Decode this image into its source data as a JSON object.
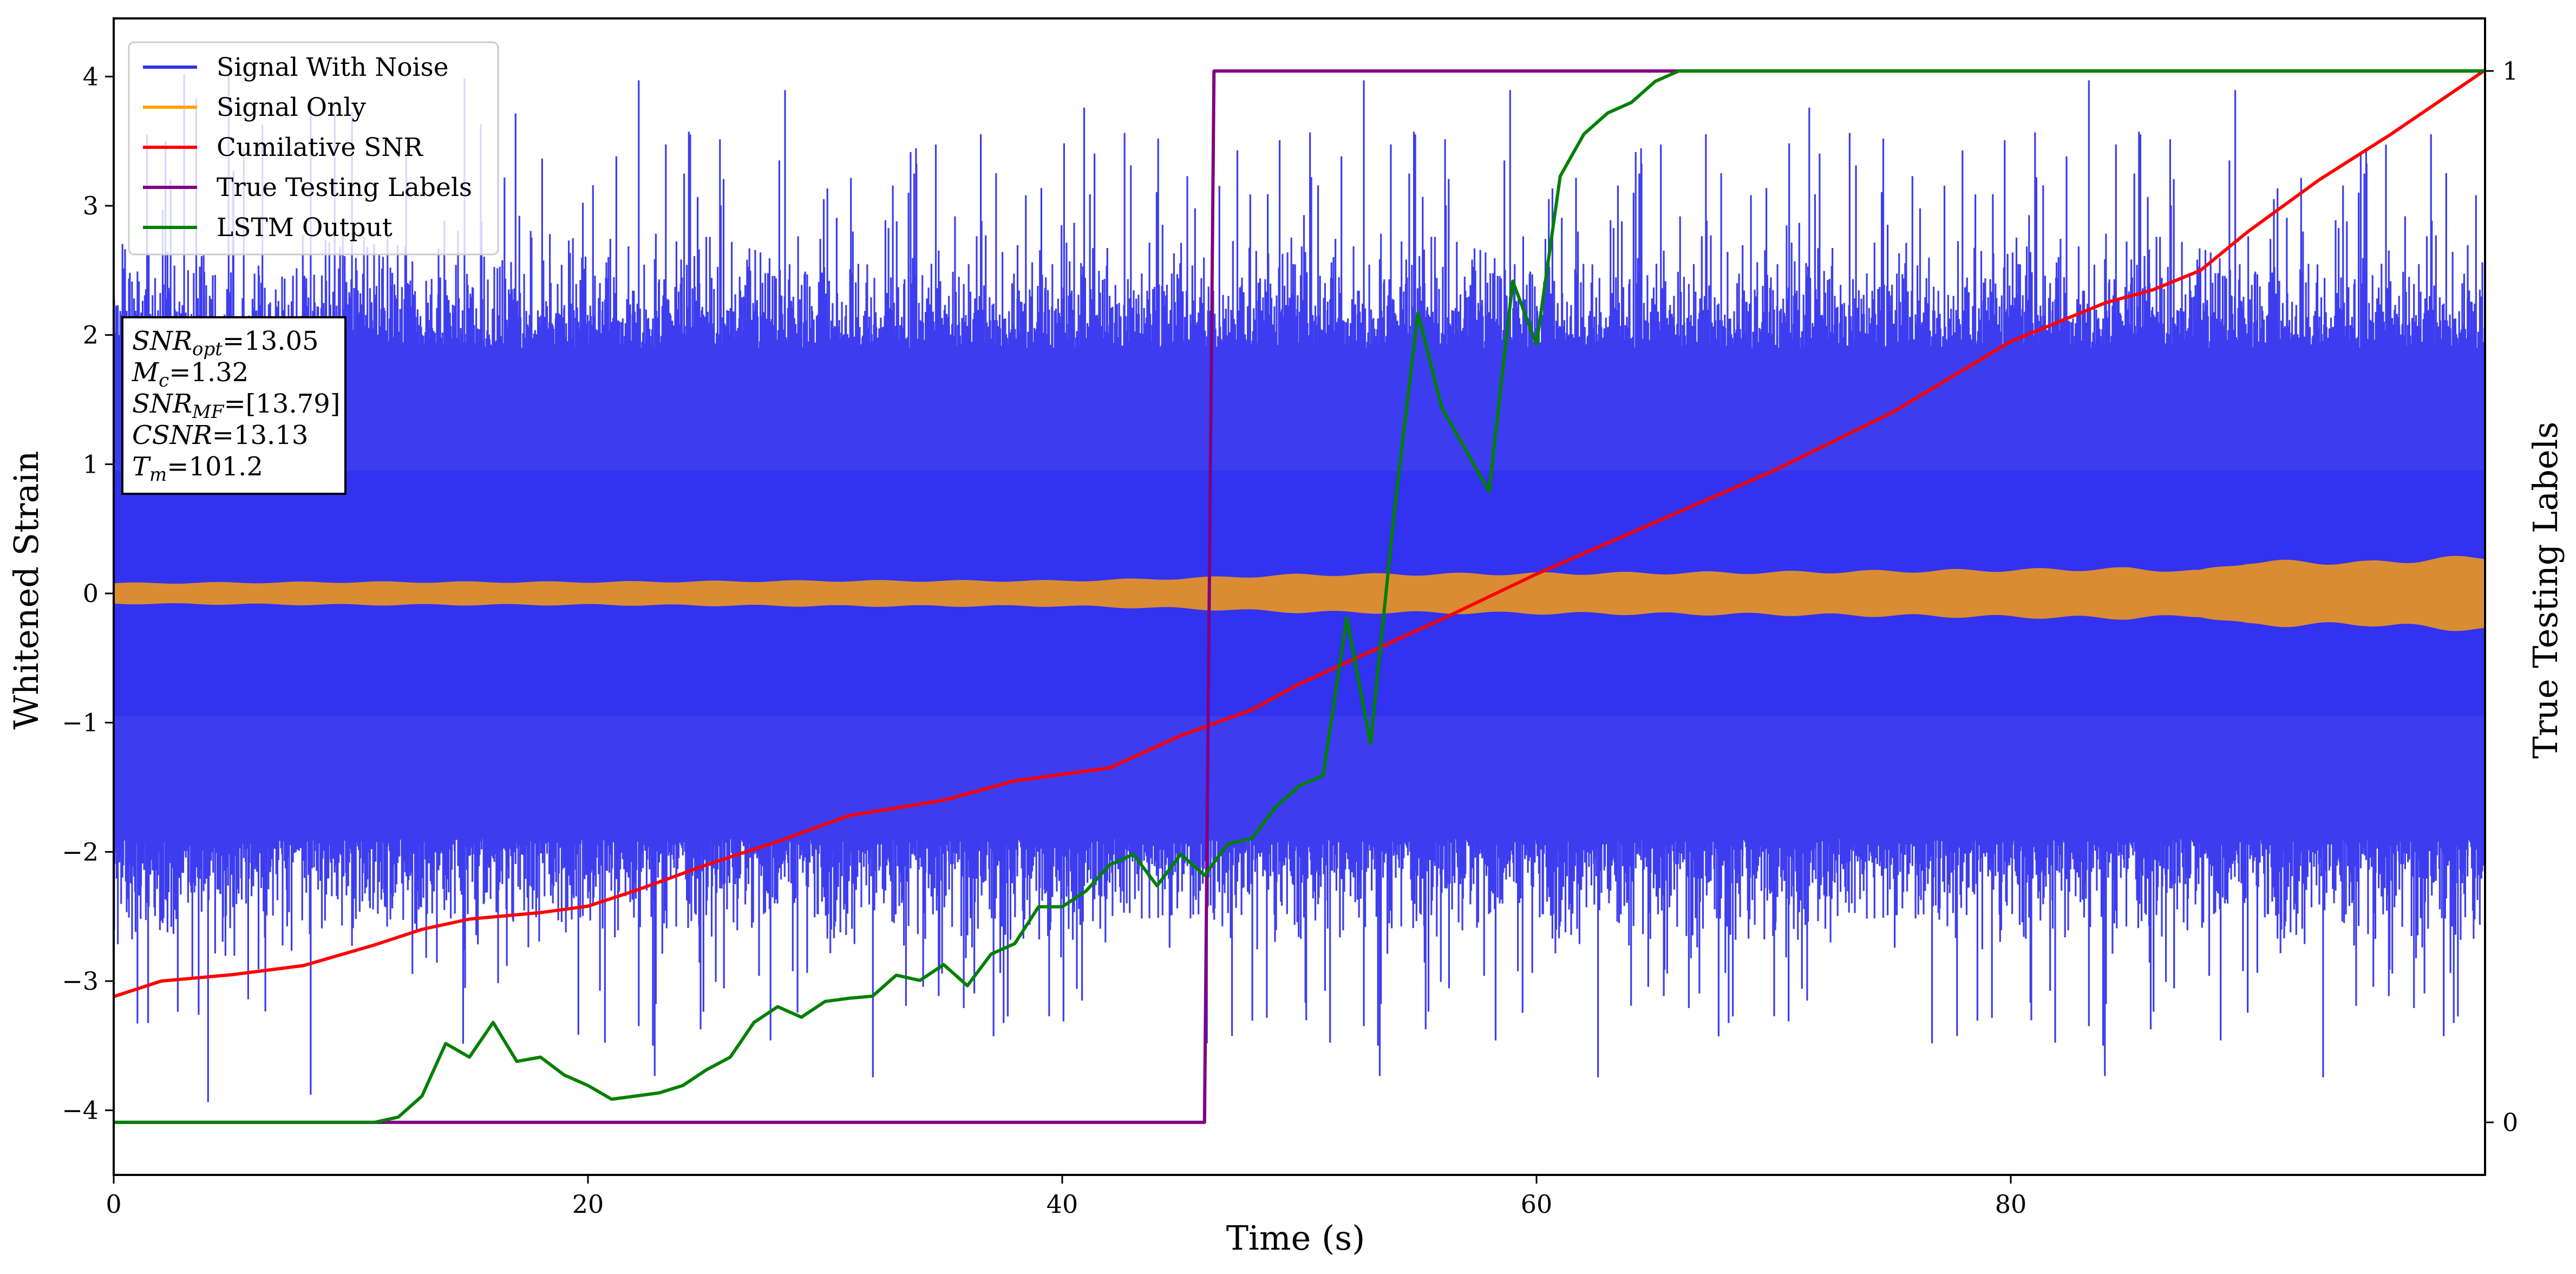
{
  "chart_data": {
    "type": "line",
    "xlabel": "Time (s)",
    "ylabel": "Whitened Strain",
    "ylabel_right": "True Testing Labels",
    "xlim": [
      0,
      100
    ],
    "ylim": [
      -4.5,
      4.45
    ],
    "ylim_right": [
      -0.05,
      1.05
    ],
    "x_ticks": [
      0,
      20,
      40,
      60,
      80
    ],
    "y_ticks": [
      -4,
      -3,
      -2,
      -1,
      0,
      1,
      2,
      3,
      4
    ],
    "y_ticks_right": [
      0,
      1
    ],
    "grid": false,
    "legend_position": "top-left",
    "legend": [
      {
        "label": "Signal With Noise",
        "color": "#3333ee"
      },
      {
        "label": "Signal Only",
        "color": "#ffa500"
      },
      {
        "label": "Cumilative SNR",
        "color": "#ff0000"
      },
      {
        "label": "True Testing Labels",
        "color": "#800080"
      },
      {
        "label": "LSTM Output",
        "color": "#008000"
      }
    ],
    "info_box": [
      {
        "sym": "SNR",
        "sub": "opt",
        "val": "=13.05"
      },
      {
        "sym": "M",
        "sub": "c",
        "val": "=1.32"
      },
      {
        "sym": "SNR",
        "sub": "MF",
        "val": "=[13.79]"
      },
      {
        "sym": "CSNR",
        "sub": "",
        "val": "=13.13"
      },
      {
        "sym": "T",
        "sub": "m",
        "val": "=101.2"
      }
    ],
    "series": [
      {
        "name": "Signal With Noise",
        "axis": "left",
        "color": "#3333ee",
        "description": "dense noisy waveform, roughly uniform amplitude, spikes up to about 4 and down to about -4.1",
        "band_core": 0.95,
        "band_mid": 1.9,
        "spike_max": 4.05,
        "spike_min": -4.1
      },
      {
        "name": "Signal Only",
        "axis": "left",
        "color": "#ffa500",
        "envelope_x": [
          0,
          10,
          20,
          30,
          40,
          45,
          50,
          60,
          70,
          80,
          85,
          88,
          90,
          95,
          100
        ],
        "envelope_amp": [
          0.08,
          0.09,
          0.09,
          0.1,
          0.1,
          0.12,
          0.15,
          0.16,
          0.17,
          0.19,
          0.2,
          0.18,
          0.26,
          0.25,
          0.3
        ]
      },
      {
        "name": "Cumilative SNR",
        "axis": "left",
        "color": "#ff0000",
        "x": [
          0,
          2,
          5,
          8,
          11,
          13,
          15,
          18,
          20,
          22,
          25,
          28,
          31,
          35,
          38,
          42,
          45,
          48,
          50,
          53,
          56,
          60,
          65,
          70,
          75,
          80,
          84,
          86,
          88,
          90,
          93,
          96,
          100
        ],
        "y": [
          -3.12,
          -3.0,
          -2.95,
          -2.88,
          -2.72,
          -2.6,
          -2.52,
          -2.47,
          -2.42,
          -2.3,
          -2.1,
          -1.92,
          -1.72,
          -1.6,
          -1.45,
          -1.35,
          -1.1,
          -0.9,
          -0.7,
          -0.45,
          -0.2,
          0.15,
          0.55,
          0.95,
          1.4,
          1.95,
          2.25,
          2.35,
          2.5,
          2.8,
          3.2,
          3.55,
          4.05
        ]
      },
      {
        "name": "True Testing Labels",
        "axis": "right",
        "color": "#800080",
        "x": [
          0,
          46.0,
          46.4,
          100
        ],
        "y": [
          0,
          0,
          1,
          1
        ]
      },
      {
        "name": "LSTM Output",
        "axis": "right",
        "color": "#008000",
        "x": [
          0,
          11,
          12,
          13,
          14,
          15,
          16,
          17,
          18,
          19,
          20,
          21,
          22,
          23,
          24,
          25,
          26,
          27,
          28,
          29,
          30,
          31,
          32,
          33,
          34,
          35,
          36,
          37,
          38,
          39,
          40,
          41,
          42,
          43,
          44,
          45,
          46,
          47,
          48,
          49,
          50,
          51,
          52,
          53,
          54,
          55,
          56,
          57,
          58,
          59,
          60,
          61,
          62,
          63,
          64,
          65,
          66,
          67,
          68,
          70,
          75,
          100
        ],
        "y": [
          0,
          0,
          0.005,
          0.025,
          0.075,
          0.062,
          0.095,
          0.058,
          0.062,
          0.045,
          0.035,
          0.022,
          0.025,
          0.028,
          0.035,
          0.05,
          0.062,
          0.095,
          0.11,
          0.1,
          0.115,
          0.118,
          0.12,
          0.14,
          0.135,
          0.15,
          0.13,
          0.16,
          0.17,
          0.205,
          0.205,
          0.22,
          0.245,
          0.255,
          0.225,
          0.255,
          0.235,
          0.265,
          0.27,
          0.3,
          0.32,
          0.33,
          0.48,
          0.36,
          0.58,
          0.77,
          0.68,
          0.64,
          0.6,
          0.8,
          0.74,
          0.9,
          0.94,
          0.96,
          0.97,
          0.99,
          1.0,
          1.0,
          1.0,
          1.0,
          1.0,
          1.0
        ]
      }
    ]
  }
}
